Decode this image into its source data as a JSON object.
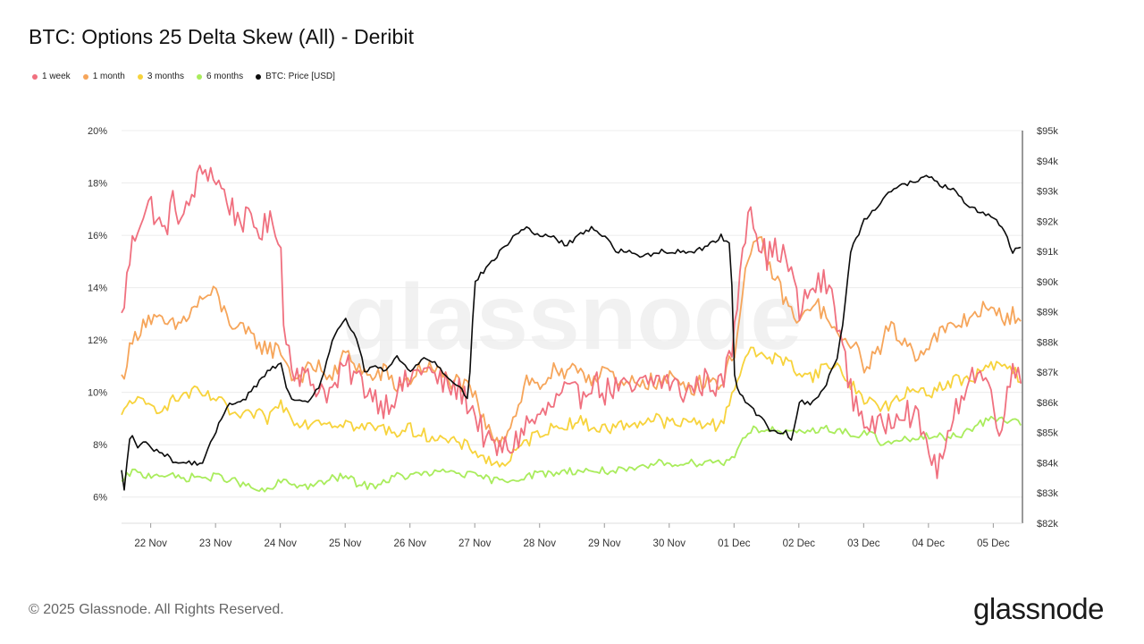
{
  "header": {
    "title": "BTC: Options 25 Delta Skew (All) - Deribit"
  },
  "footer": {
    "copyright": "© 2025 Glassnode. All Rights Reserved.",
    "brand": "glassnode"
  },
  "watermark": "glassnode",
  "colors": {
    "week": "#f0707f",
    "month": "#f6a55a",
    "three_months": "#f7d33c",
    "six_months": "#a9ec5c",
    "price": "#0b0b0b",
    "grid": "#ececec"
  },
  "chart_data": {
    "type": "line",
    "title": "BTC: Options 25 Delta Skew (All) - Deribit",
    "x_range": [
      21.55,
      35.45
    ],
    "x_unit": "days since 1 Nov (Nov–Dec)",
    "x_ticks": [
      {
        "x": 22,
        "label": "22 Nov"
      },
      {
        "x": 23,
        "label": "23 Nov"
      },
      {
        "x": 24,
        "label": "24 Nov"
      },
      {
        "x": 25,
        "label": "25 Nov"
      },
      {
        "x": 26,
        "label": "26 Nov"
      },
      {
        "x": 27,
        "label": "27 Nov"
      },
      {
        "x": 28,
        "label": "28 Nov"
      },
      {
        "x": 29,
        "label": "29 Nov"
      },
      {
        "x": 30,
        "label": "30 Nov"
      },
      {
        "x": 31,
        "label": "01 Dec"
      },
      {
        "x": 32,
        "label": "02 Dec"
      },
      {
        "x": 33,
        "label": "03 Dec"
      },
      {
        "x": 34,
        "label": "04 Dec"
      },
      {
        "x": 35,
        "label": "05 Dec"
      }
    ],
    "y_left": {
      "range": [
        5,
        20
      ],
      "ticks": [
        {
          "v": 6,
          "label": "6%"
        },
        {
          "v": 8,
          "label": "8%"
        },
        {
          "v": 10,
          "label": "10%"
        },
        {
          "v": 12,
          "label": "12%"
        },
        {
          "v": 14,
          "label": "14%"
        },
        {
          "v": 16,
          "label": "16%"
        },
        {
          "v": 18,
          "label": "18%"
        },
        {
          "v": 20,
          "label": "20%"
        }
      ]
    },
    "y_right": {
      "range": [
        82000,
        95000
      ],
      "ticks": [
        {
          "v": 82000,
          "label": "$82k"
        },
        {
          "v": 83000,
          "label": "$83k"
        },
        {
          "v": 84000,
          "label": "$84k"
        },
        {
          "v": 85000,
          "label": "$85k"
        },
        {
          "v": 86000,
          "label": "$86k"
        },
        {
          "v": 87000,
          "label": "$87k"
        },
        {
          "v": 88000,
          "label": "$88k"
        },
        {
          "v": 89000,
          "label": "$89k"
        },
        {
          "v": 90000,
          "label": "$90k"
        },
        {
          "v": 91000,
          "label": "$91k"
        },
        {
          "v": 92000,
          "label": "$92k"
        },
        {
          "v": 93000,
          "label": "$93k"
        },
        {
          "v": 94000,
          "label": "$94k"
        },
        {
          "v": 95000,
          "label": "$95k"
        }
      ]
    },
    "series": [
      {
        "name": "1 week",
        "key": "week",
        "axis": "left",
        "noise": 0.55,
        "x": [
          21.55,
          21.7,
          21.85,
          22.0,
          22.2,
          22.35,
          22.5,
          22.7,
          22.85,
          23.0,
          23.15,
          23.3,
          23.5,
          23.7,
          23.9,
          24.0,
          24.05,
          24.2,
          24.4,
          24.6,
          24.8,
          25.0,
          25.2,
          25.4,
          25.6,
          25.8,
          26.0,
          26.2,
          26.4,
          26.6,
          26.8,
          27.0,
          27.2,
          27.4,
          27.6,
          27.8,
          28.0,
          28.2,
          28.4,
          28.6,
          28.8,
          29.0,
          29.2,
          29.4,
          29.6,
          29.8,
          30.0,
          30.2,
          30.4,
          30.6,
          30.8,
          31.0,
          31.1,
          31.25,
          31.35,
          31.5,
          31.7,
          31.9,
          32.0,
          32.2,
          32.4,
          32.55,
          32.65,
          32.8,
          33.0,
          33.2,
          33.4,
          33.6,
          33.8,
          34.0,
          34.1,
          34.3,
          34.5,
          34.7,
          34.9,
          35.0,
          35.1,
          35.2,
          35.3,
          35.45
        ],
        "y": [
          12.8,
          15.5,
          16.8,
          17.2,
          16.0,
          17.3,
          16.5,
          18.0,
          18.6,
          18.2,
          17.5,
          16.8,
          16.5,
          16.2,
          16.5,
          16.0,
          12.5,
          11.0,
          10.5,
          10.2,
          10.0,
          11.0,
          10.5,
          10.0,
          9.5,
          10.0,
          10.5,
          11.0,
          10.5,
          10.2,
          10.0,
          9.2,
          8.0,
          7.8,
          8.0,
          8.8,
          9.0,
          9.5,
          10.0,
          9.8,
          10.5,
          10.0,
          10.2,
          10.0,
          10.3,
          10.5,
          10.4,
          10.0,
          10.2,
          10.5,
          10.2,
          12.0,
          15.0,
          17.5,
          16.0,
          15.2,
          15.5,
          14.5,
          13.0,
          14.0,
          14.2,
          13.5,
          12.0,
          10.0,
          9.0,
          8.5,
          9.0,
          9.5,
          9.0,
          8.0,
          7.0,
          8.0,
          10.0,
          10.8,
          10.5,
          9.5,
          8.8,
          9.5,
          11.0,
          10.8
        ]
      },
      {
        "name": "1 month",
        "key": "month",
        "axis": "left",
        "noise": 0.35,
        "x": [
          21.55,
          21.7,
          21.9,
          22.0,
          22.2,
          22.4,
          22.6,
          22.8,
          23.0,
          23.1,
          23.3,
          23.5,
          23.7,
          23.9,
          24.0,
          24.2,
          24.4,
          24.6,
          24.8,
          25.0,
          25.2,
          25.4,
          25.6,
          25.8,
          26.0,
          26.2,
          26.4,
          26.6,
          26.8,
          27.0,
          27.2,
          27.4,
          27.6,
          27.8,
          28.0,
          28.2,
          28.4,
          28.6,
          28.8,
          29.0,
          29.2,
          29.4,
          29.6,
          29.8,
          30.0,
          30.2,
          30.4,
          30.6,
          30.8,
          31.0,
          31.2,
          31.4,
          31.6,
          31.8,
          32.0,
          32.2,
          32.4,
          32.6,
          32.8,
          33.0,
          33.2,
          33.4,
          33.6,
          33.8,
          34.0,
          34.2,
          34.4,
          34.6,
          34.8,
          35.0,
          35.2,
          35.45
        ],
        "y": [
          10.5,
          11.8,
          12.8,
          12.8,
          12.6,
          12.5,
          13.0,
          13.6,
          13.8,
          13.2,
          12.5,
          12.2,
          11.8,
          11.6,
          11.7,
          10.5,
          10.8,
          11.0,
          10.5,
          11.5,
          11.0,
          10.5,
          10.8,
          10.2,
          10.5,
          11.0,
          10.8,
          10.5,
          10.3,
          9.8,
          8.5,
          8.2,
          9.0,
          10.5,
          10.2,
          10.8,
          10.5,
          11.0,
          10.5,
          11.0,
          10.2,
          10.3,
          10.5,
          10.3,
          10.5,
          10.4,
          10.2,
          10.6,
          10.3,
          11.5,
          15.0,
          15.8,
          14.5,
          13.5,
          12.5,
          13.5,
          13.0,
          12.0,
          12.0,
          11.0,
          11.5,
          12.5,
          12.0,
          11.5,
          11.8,
          12.3,
          12.5,
          12.8,
          13.2,
          13.0,
          12.9,
          13.0
        ]
      },
      {
        "name": "3 months",
        "key": "three_months",
        "axis": "left",
        "noise": 0.25,
        "x": [
          21.55,
          21.7,
          21.9,
          22.1,
          22.3,
          22.5,
          22.7,
          22.9,
          23.0,
          23.2,
          23.4,
          23.6,
          23.8,
          24.0,
          24.2,
          24.4,
          24.6,
          24.8,
          25.0,
          25.2,
          25.4,
          25.6,
          25.8,
          26.0,
          26.2,
          26.4,
          26.6,
          26.8,
          27.0,
          27.2,
          27.4,
          27.6,
          27.8,
          28.0,
          28.2,
          28.4,
          28.6,
          28.8,
          29.0,
          29.2,
          29.4,
          29.6,
          29.8,
          30.0,
          30.2,
          30.4,
          30.6,
          30.8,
          31.0,
          31.2,
          31.4,
          31.6,
          31.8,
          32.0,
          32.2,
          32.4,
          32.6,
          32.8,
          33.0,
          33.2,
          33.4,
          33.6,
          33.8,
          34.0,
          34.2,
          34.4,
          34.6,
          34.8,
          35.0,
          35.2,
          35.45
        ],
        "y": [
          9.0,
          9.8,
          9.5,
          9.4,
          9.6,
          9.9,
          10.0,
          9.8,
          9.8,
          9.3,
          9.0,
          9.2,
          9.0,
          9.6,
          9.0,
          8.8,
          9.0,
          8.8,
          8.9,
          8.6,
          8.7,
          8.6,
          8.5,
          8.6,
          8.4,
          8.3,
          8.1,
          8.0,
          7.8,
          7.4,
          7.2,
          7.6,
          8.1,
          8.5,
          8.6,
          8.8,
          8.9,
          8.7,
          8.6,
          8.7,
          8.8,
          8.9,
          9.0,
          8.8,
          8.8,
          8.9,
          8.8,
          8.7,
          10.2,
          11.5,
          11.5,
          11.3,
          11.2,
          10.8,
          10.6,
          11.0,
          11.0,
          10.3,
          9.8,
          9.5,
          9.5,
          9.8,
          10.2,
          10.0,
          10.2,
          10.5,
          10.4,
          10.8,
          11.0,
          11.0,
          10.5
        ]
      },
      {
        "name": "6 months",
        "key": "six_months",
        "axis": "left",
        "noise": 0.15,
        "x": [
          21.55,
          21.7,
          21.9,
          22.1,
          22.3,
          22.5,
          22.7,
          22.9,
          23.0,
          23.2,
          23.4,
          23.6,
          23.8,
          24.0,
          24.2,
          24.4,
          24.6,
          24.8,
          25.0,
          25.2,
          25.4,
          25.6,
          25.8,
          26.0,
          26.2,
          26.4,
          26.6,
          26.8,
          27.0,
          27.2,
          27.4,
          27.6,
          27.8,
          28.0,
          28.2,
          28.4,
          28.6,
          28.8,
          29.0,
          29.2,
          29.4,
          29.6,
          29.8,
          30.0,
          30.2,
          30.4,
          30.6,
          30.8,
          31.0,
          31.1,
          31.3,
          31.5,
          31.7,
          31.9,
          32.1,
          32.3,
          32.5,
          32.7,
          32.9,
          33.1,
          33.3,
          33.5,
          33.7,
          33.9,
          34.1,
          34.3,
          34.5,
          34.7,
          34.9,
          35.1,
          35.3,
          35.45
        ],
        "y": [
          6.5,
          7.0,
          6.8,
          6.9,
          6.8,
          6.7,
          6.8,
          6.7,
          6.8,
          6.7,
          6.5,
          6.3,
          6.2,
          6.6,
          6.5,
          6.4,
          6.5,
          6.7,
          6.8,
          6.5,
          6.4,
          6.6,
          6.8,
          6.8,
          6.9,
          6.9,
          7.0,
          6.9,
          6.8,
          6.7,
          6.6,
          6.7,
          6.8,
          6.9,
          6.9,
          7.0,
          7.0,
          7.0,
          7.0,
          7.0,
          7.0,
          7.1,
          7.3,
          7.3,
          7.3,
          7.3,
          7.4,
          7.3,
          7.5,
          8.2,
          8.6,
          8.6,
          8.5,
          8.4,
          8.5,
          8.6,
          8.6,
          8.5,
          8.3,
          8.5,
          8.0,
          8.1,
          8.2,
          8.3,
          8.3,
          8.3,
          8.4,
          8.7,
          8.9,
          9.0,
          8.9,
          8.8
        ]
      },
      {
        "name": "BTC: Price [USD]",
        "key": "price",
        "axis": "right",
        "noise": 80,
        "x": [
          21.55,
          21.6,
          21.65,
          21.7,
          21.8,
          21.9,
          22.0,
          22.2,
          22.4,
          22.6,
          22.8,
          23.0,
          23.1,
          23.2,
          23.4,
          23.6,
          23.8,
          24.0,
          24.1,
          24.2,
          24.4,
          24.6,
          24.8,
          25.0,
          25.2,
          25.3,
          25.5,
          25.6,
          25.8,
          26.0,
          26.2,
          26.4,
          26.6,
          26.8,
          26.9,
          27.0,
          27.2,
          27.4,
          27.6,
          27.8,
          28.0,
          28.2,
          28.4,
          28.6,
          28.8,
          29.0,
          29.2,
          29.4,
          29.6,
          29.8,
          30.0,
          30.2,
          30.4,
          30.6,
          30.8,
          30.95,
          31.0,
          31.05,
          31.2,
          31.4,
          31.6,
          31.8,
          31.9,
          32.0,
          32.2,
          32.4,
          32.6,
          32.7,
          32.8,
          33.0,
          33.2,
          33.4,
          33.6,
          33.8,
          34.0,
          34.2,
          34.4,
          34.6,
          34.8,
          35.0,
          35.2,
          35.3,
          35.45
        ],
        "y": [
          83700,
          83000,
          84500,
          85000,
          84500,
          84700,
          84500,
          84300,
          84000,
          84000,
          84000,
          85000,
          85500,
          86000,
          86000,
          86500,
          87000,
          87300,
          86500,
          86000,
          86000,
          86500,
          88000,
          88800,
          88000,
          87000,
          87200,
          87000,
          87500,
          87000,
          87500,
          87300,
          86800,
          86500,
          86000,
          90000,
          90500,
          91000,
          91500,
          91800,
          91500,
          91500,
          91200,
          91500,
          91800,
          91500,
          91000,
          91000,
          90800,
          91000,
          91000,
          91000,
          91000,
          91200,
          91500,
          91200,
          87000,
          86500,
          86000,
          85500,
          85000,
          85000,
          84800,
          86000,
          86000,
          86500,
          87500,
          89000,
          91000,
          92000,
          92500,
          93000,
          93200,
          93300,
          93500,
          93200,
          93000,
          92500,
          92300,
          92200,
          91500,
          91000,
          91200
        ]
      }
    ]
  }
}
